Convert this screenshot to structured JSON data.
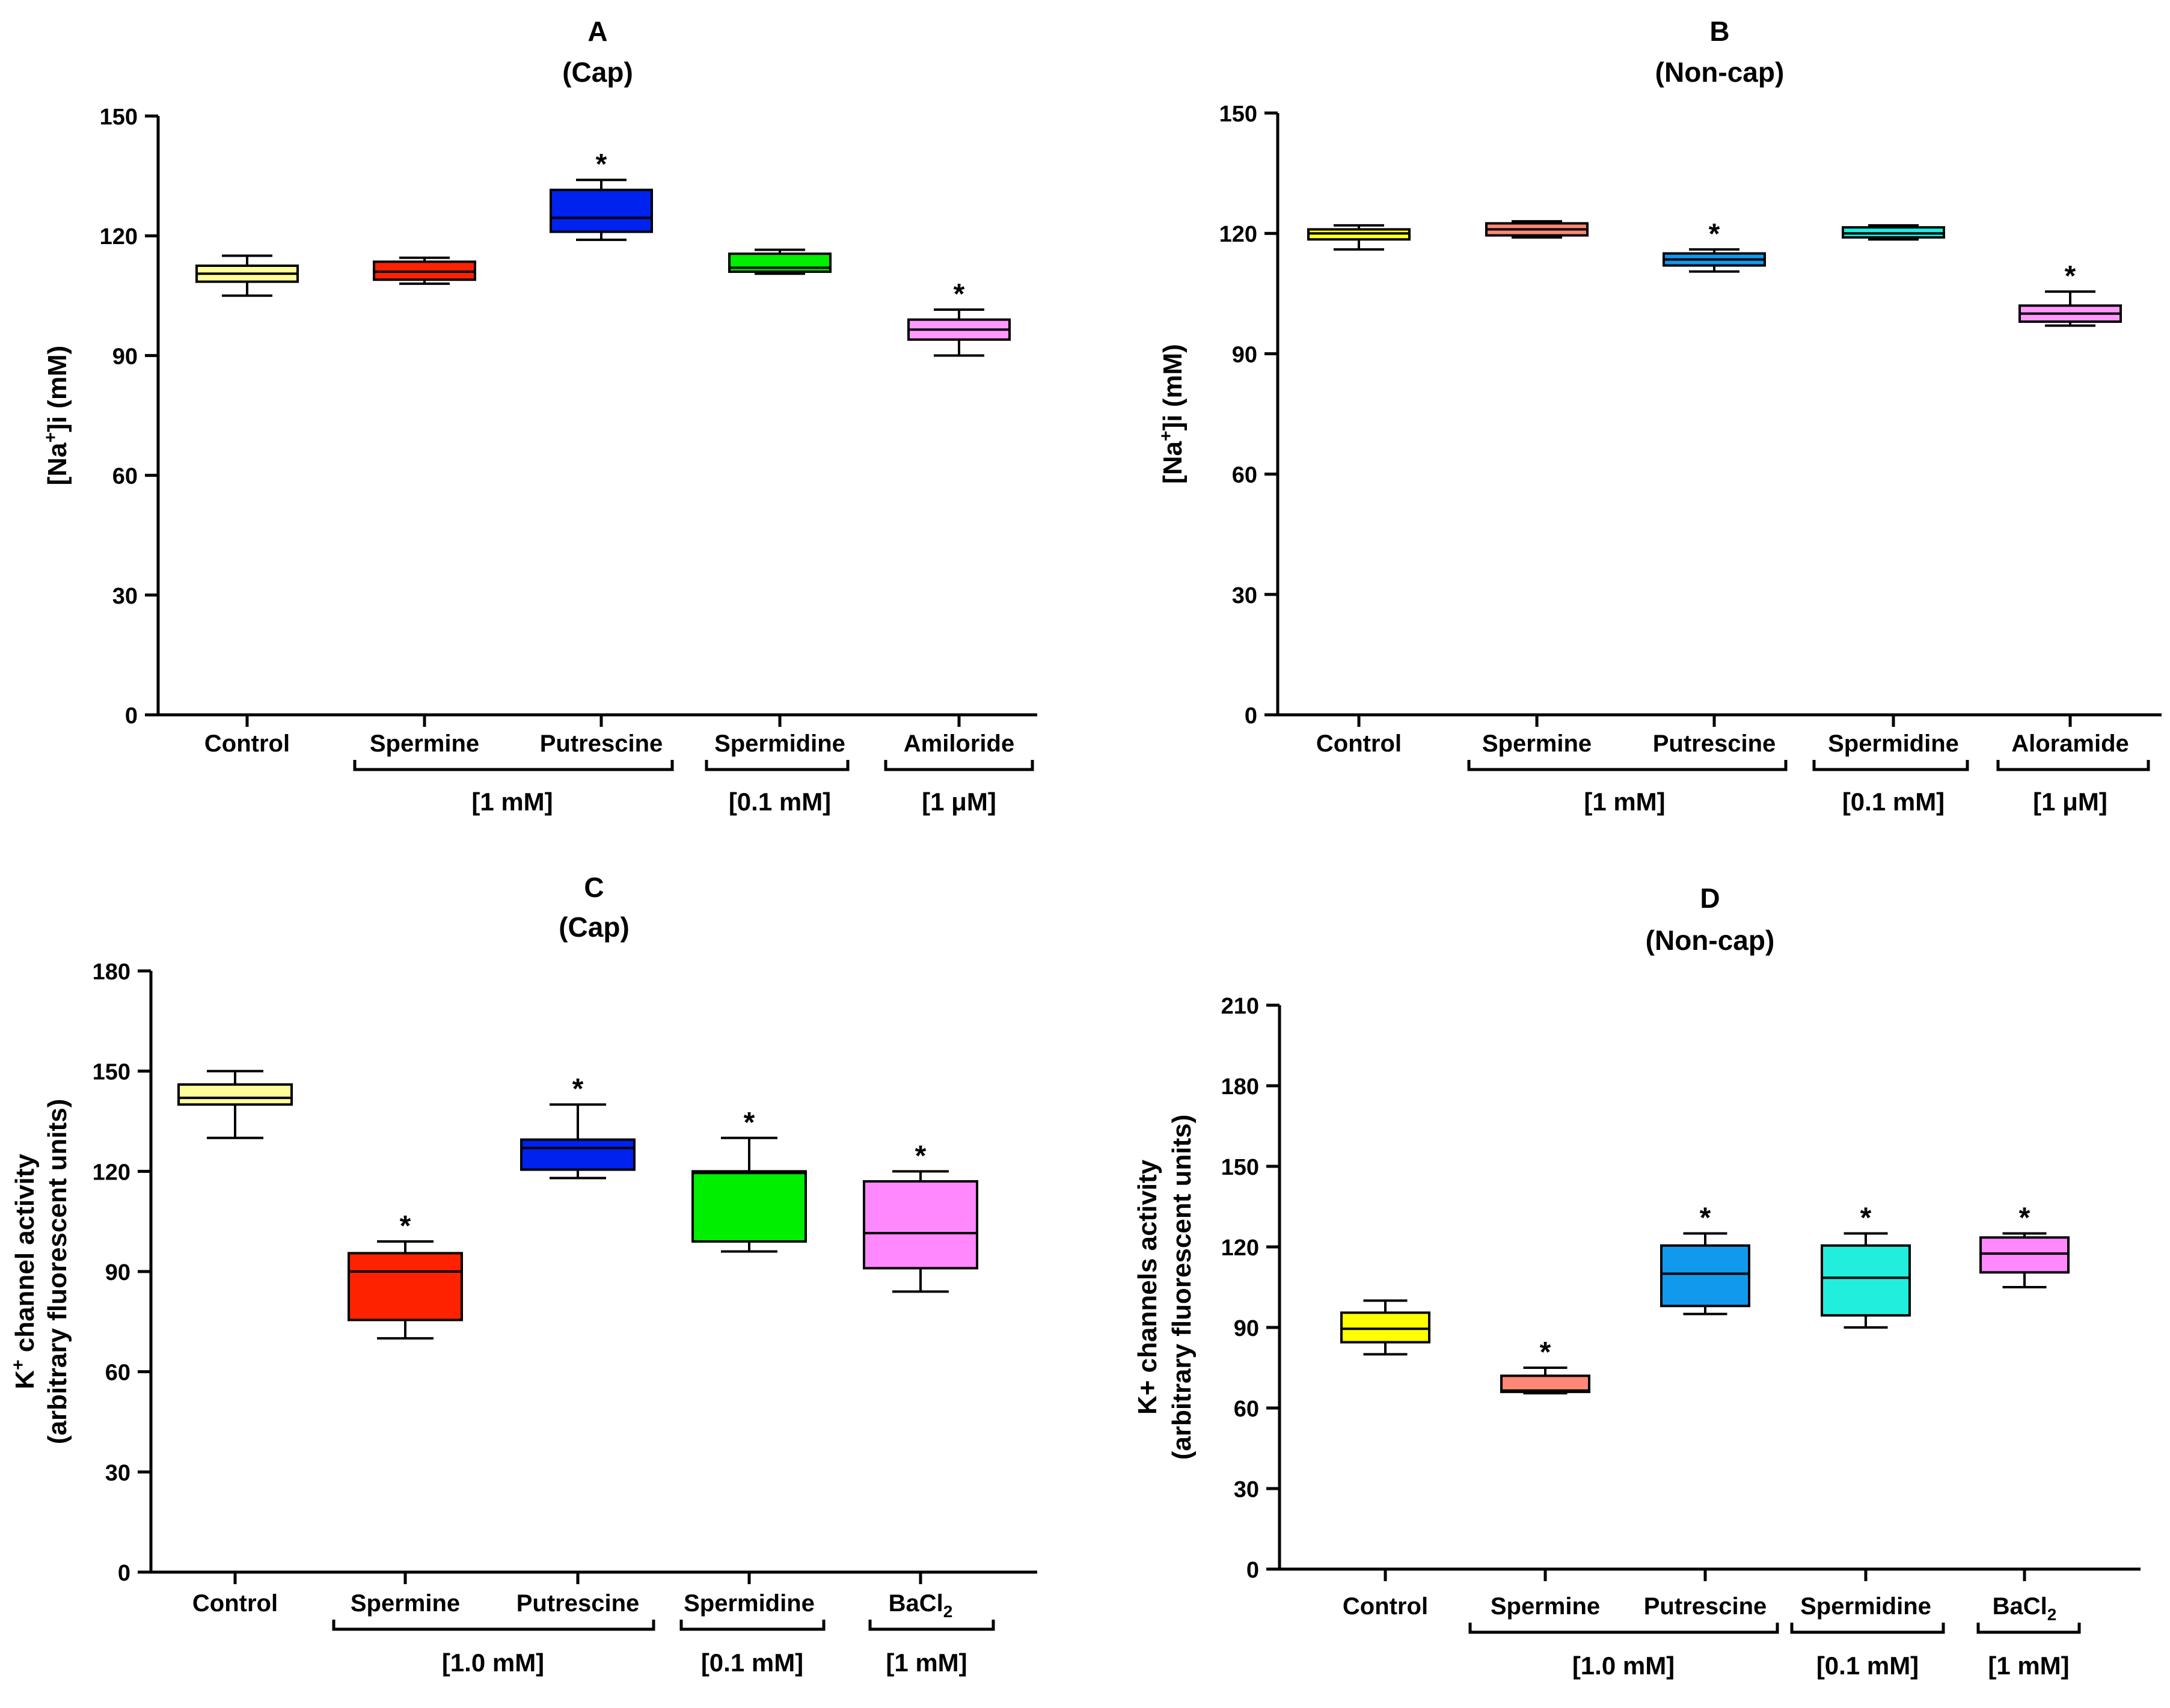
{
  "chart_data": [
    {
      "type": "box",
      "panel_letter": "A",
      "subtitle": "(Cap)",
      "ylabel_parts": [
        "[Na",
        "+",
        "]i (mM)"
      ],
      "ylim": [
        0,
        150
      ],
      "yticks": [
        0,
        30,
        60,
        90,
        120,
        150
      ],
      "categories": [
        "Control",
        "Spermine",
        "Putrescine",
        "Spermidine",
        "Amiloride"
      ],
      "colors": [
        "#FFFF99",
        "#FF2200",
        "#0022EE",
        "#00EE00",
        "#FF99FF"
      ],
      "boxes": [
        {
          "min": 105,
          "q1": 108.5,
          "median": 110.5,
          "q3": 112.5,
          "max": 115,
          "sig": false
        },
        {
          "min": 108,
          "q1": 109,
          "median": 111,
          "q3": 113.5,
          "max": 114.5,
          "sig": false
        },
        {
          "min": 119,
          "q1": 121,
          "median": 124.5,
          "q3": 131.5,
          "max": 134,
          "sig": true
        },
        {
          "min": 110.5,
          "q1": 111,
          "median": 112,
          "q3": 115.5,
          "max": 116.5,
          "sig": false
        },
        {
          "min": 90,
          "q1": 94,
          "median": 96.5,
          "q3": 99,
          "max": 101.5,
          "sig": true
        }
      ],
      "sig_marker": "*",
      "concentration_groups": [
        {
          "label": "[1 mM]",
          "members": [
            1,
            2
          ]
        },
        {
          "label": "[0.1 mM]",
          "members": [
            3
          ]
        },
        {
          "label": "[1 μM]",
          "members": [
            4
          ]
        }
      ]
    },
    {
      "type": "box",
      "panel_letter": "B",
      "subtitle": "(Non-cap)",
      "ylabel_parts": [
        "[Na",
        "+",
        "]i (mM)"
      ],
      "ylim": [
        0,
        150
      ],
      "yticks": [
        0,
        30,
        60,
        90,
        120,
        150
      ],
      "categories": [
        "Control",
        "Spermine",
        "Putrescine",
        "Spermidine",
        "Aloramide"
      ],
      "colors": [
        "#FFFF33",
        "#FF8877",
        "#1199EE",
        "#22EEDD",
        "#FF99FF"
      ],
      "boxes": [
        {
          "min": 116,
          "q1": 118.5,
          "median": 120,
          "q3": 121,
          "max": 122,
          "sig": false
        },
        {
          "min": 119,
          "q1": 119.5,
          "median": 121,
          "q3": 122.5,
          "max": 123,
          "sig": false
        },
        {
          "min": 110.5,
          "q1": 112,
          "median": 113.5,
          "q3": 115,
          "max": 116,
          "sig": true
        },
        {
          "min": 118.5,
          "q1": 119,
          "median": 120,
          "q3": 121.5,
          "max": 122,
          "sig": false
        },
        {
          "min": 97,
          "q1": 98,
          "median": 100,
          "q3": 102,
          "max": 105.5,
          "sig": true
        }
      ],
      "sig_marker": "*",
      "concentration_groups": [
        {
          "label": "[1 mM]",
          "members": [
            1,
            2
          ]
        },
        {
          "label": "[0.1 mM]",
          "members": [
            3
          ]
        },
        {
          "label": "[1 μM]",
          "members": [
            4
          ]
        }
      ]
    },
    {
      "type": "box",
      "panel_letter": "C",
      "subtitle": "(Cap)",
      "ylabel_line1_parts": [
        "K",
        "+",
        " channel activity"
      ],
      "ylabel_line2": "(arbitrary fluorescent units)",
      "ylim": [
        0,
        180
      ],
      "yticks": [
        0,
        30,
        60,
        90,
        120,
        150,
        180
      ],
      "categories": [
        "Control",
        "Spermine",
        "Putrescine",
        "Spermidine",
        "BaCl2"
      ],
      "category_subscripts": [
        "",
        "",
        "",
        "",
        "2"
      ],
      "colors": [
        "#FFFF99",
        "#FF2200",
        "#0022EE",
        "#00EE00",
        "#FF88FF"
      ],
      "boxes": [
        {
          "min": 130,
          "q1": 140,
          "median": 142,
          "q3": 146,
          "max": 150,
          "sig": false
        },
        {
          "min": 70,
          "q1": 75.5,
          "median": 90,
          "q3": 95.5,
          "max": 99,
          "sig": true
        },
        {
          "min": 118,
          "q1": 120.5,
          "median": 127,
          "q3": 129.5,
          "max": 140,
          "sig": true
        },
        {
          "min": 96,
          "q1": 99,
          "median": 119.5,
          "q3": 120,
          "max": 130,
          "sig": true
        },
        {
          "min": 84,
          "q1": 91,
          "median": 101.5,
          "q3": 117,
          "max": 120,
          "sig": true
        }
      ],
      "sig_marker": "*",
      "concentration_groups": [
        {
          "label": "[1.0 mM]",
          "members": [
            1,
            2
          ]
        },
        {
          "label": "[0.1 mM]",
          "members": [
            3
          ]
        },
        {
          "label": "[1 mM]",
          "members": [
            4
          ]
        }
      ]
    },
    {
      "type": "box",
      "panel_letter": "D",
      "subtitle": "(Non-cap)",
      "ylabel_line1": "K+ channels activity",
      "ylabel_line2": "(arbitrary fluorescent units)",
      "ylim": [
        0,
        210
      ],
      "yticks": [
        0,
        30,
        60,
        90,
        120,
        150,
        180,
        210
      ],
      "categories": [
        "Control",
        "Spermine",
        "Putrescine",
        "Spermidine",
        "BaCl2"
      ],
      "category_subscripts": [
        "",
        "",
        "",
        "",
        "2"
      ],
      "colors": [
        "#FFFF00",
        "#FF8877",
        "#1199EE",
        "#22EEDD",
        "#FF88FF"
      ],
      "boxes": [
        {
          "min": 80,
          "q1": 84.5,
          "median": 89.5,
          "q3": 95.5,
          "max": 100,
          "sig": false
        },
        {
          "min": 65.5,
          "q1": 66,
          "median": 66.5,
          "q3": 72,
          "max": 75,
          "sig": true
        },
        {
          "min": 95,
          "q1": 98,
          "median": 110,
          "q3": 120.5,
          "max": 125,
          "sig": true
        },
        {
          "min": 90,
          "q1": 94.5,
          "median": 108.5,
          "q3": 120.5,
          "max": 125,
          "sig": true
        },
        {
          "min": 105,
          "q1": 110.5,
          "median": 117.5,
          "q3": 123.5,
          "max": 125,
          "sig": true
        }
      ],
      "sig_marker": "*",
      "concentration_groups": [
        {
          "label": "[1.0 mM]",
          "members": [
            1,
            2
          ]
        },
        {
          "label": "[0.1 mM]",
          "members": [
            3
          ]
        },
        {
          "label": "[1 mM]",
          "members": [
            4
          ]
        }
      ]
    }
  ]
}
